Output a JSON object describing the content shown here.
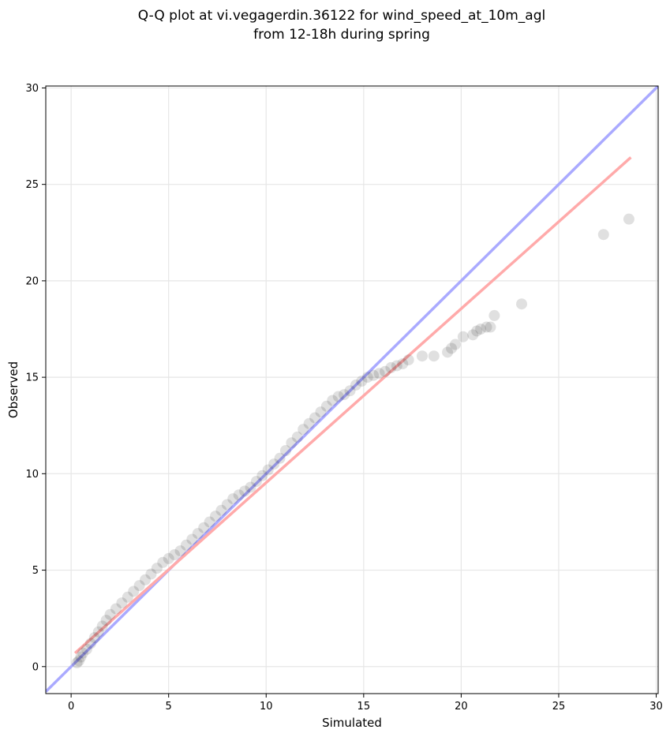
{
  "chart_data": {
    "type": "scatter",
    "title_line1": "Q-Q plot at vi.vegagerdin.36122 for wind_speed_at_10m_agl",
    "title_line2": "from 12-18h during spring",
    "xlabel": "Simulated",
    "ylabel": "Observed",
    "xlim": [
      -1.3,
      30.1
    ],
    "ylim": [
      -1.4,
      30.1
    ],
    "xticks": [
      0,
      5,
      10,
      15,
      20,
      25,
      30
    ],
    "yticks": [
      0,
      5,
      10,
      15,
      20,
      25,
      30
    ],
    "grid": true,
    "colors": {
      "identity_line": "#aaaaff",
      "fit_line": "#ffaaaa",
      "points": "#000000",
      "grid": "#e6e6e6"
    },
    "lines": [
      {
        "role": "identity",
        "x": [
          -1.3,
          30.1
        ],
        "y": [
          -1.3,
          30.1
        ]
      },
      {
        "role": "fit",
        "x": [
          0.2,
          28.7
        ],
        "y": [
          0.7,
          26.4
        ]
      }
    ],
    "series": [
      {
        "x": [
          0.3,
          0.4,
          0.5,
          0.6,
          0.8,
          1.0,
          1.2,
          1.4,
          1.6,
          1.8,
          2.0,
          2.3,
          2.6,
          2.9,
          3.2,
          3.5,
          3.8,
          4.1,
          4.4,
          4.7,
          5.0,
          5.3,
          5.6,
          5.9,
          6.2,
          6.5,
          6.8,
          7.1,
          7.4,
          7.7,
          8.0,
          8.3,
          8.6,
          8.9,
          9.2,
          9.5,
          9.8,
          10.1,
          10.4,
          10.7,
          11.0,
          11.3,
          11.6,
          11.9,
          12.2,
          12.5,
          12.8,
          13.1,
          13.4,
          13.7,
          14.0,
          14.3,
          14.6,
          14.9,
          15.2,
          15.5,
          15.8,
          16.1,
          16.4,
          16.7,
          17.0,
          17.3,
          18.0,
          18.6,
          19.3,
          19.5,
          19.7,
          20.1,
          20.6,
          20.8,
          21.0,
          21.3,
          21.5,
          21.7,
          23.1,
          27.3,
          28.6
        ],
        "y": [
          0.2,
          0.3,
          0.5,
          0.7,
          0.9,
          1.2,
          1.5,
          1.8,
          2.1,
          2.4,
          2.7,
          3.0,
          3.3,
          3.6,
          3.9,
          4.2,
          4.5,
          4.8,
          5.1,
          5.4,
          5.6,
          5.8,
          6.0,
          6.3,
          6.6,
          6.9,
          7.2,
          7.5,
          7.8,
          8.1,
          8.4,
          8.7,
          8.9,
          9.1,
          9.3,
          9.6,
          9.9,
          10.2,
          10.5,
          10.8,
          11.2,
          11.6,
          11.9,
          12.3,
          12.6,
          12.9,
          13.2,
          13.5,
          13.8,
          14.0,
          14.1,
          14.3,
          14.6,
          14.8,
          15.0,
          15.1,
          15.2,
          15.3,
          15.5,
          15.6,
          15.7,
          15.9,
          16.1,
          16.1,
          16.3,
          16.5,
          16.7,
          17.1,
          17.2,
          17.4,
          17.5,
          17.6,
          17.6,
          18.2,
          18.8,
          22.4,
          23.2
        ]
      }
    ]
  }
}
